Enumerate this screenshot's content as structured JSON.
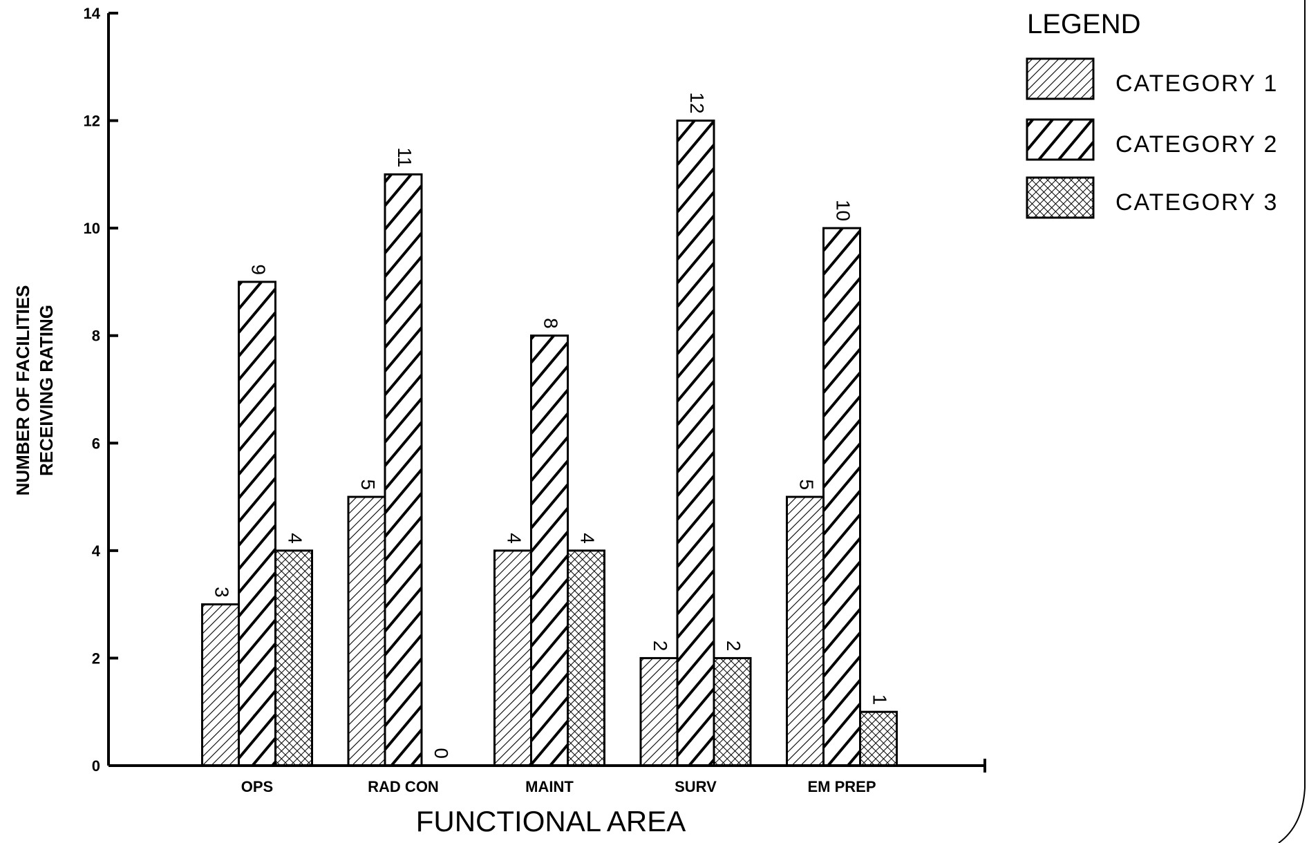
{
  "chart_data": {
    "type": "bar",
    "categories": [
      "OPS",
      "RAD CON",
      "MAINT",
      "SURV",
      "EM PREP"
    ],
    "series": [
      {
        "name": "CATEGORY 1",
        "color": "#000000",
        "pattern": "fine-hatch",
        "values": [
          3,
          5,
          4,
          2,
          5
        ]
      },
      {
        "name": "CATEGORY 2",
        "color": "#000000",
        "pattern": "bold-hatch",
        "values": [
          9,
          11,
          8,
          12,
          10
        ]
      },
      {
        "name": "CATEGORY 3",
        "color": "#000000",
        "pattern": "crosshatch",
        "values": [
          4,
          0,
          4,
          2,
          1
        ]
      }
    ],
    "ylim": [
      0,
      14
    ],
    "yticks": [
      0,
      2,
      4,
      6,
      8,
      10,
      12,
      14
    ],
    "y_label": [
      "NUMBER OF FACILITIES",
      "RECEIVING RATING"
    ],
    "x_label": "FUNCTIONAL AREA",
    "legend_title": "LEGEND",
    "legend": "top-right",
    "grid": false
  }
}
